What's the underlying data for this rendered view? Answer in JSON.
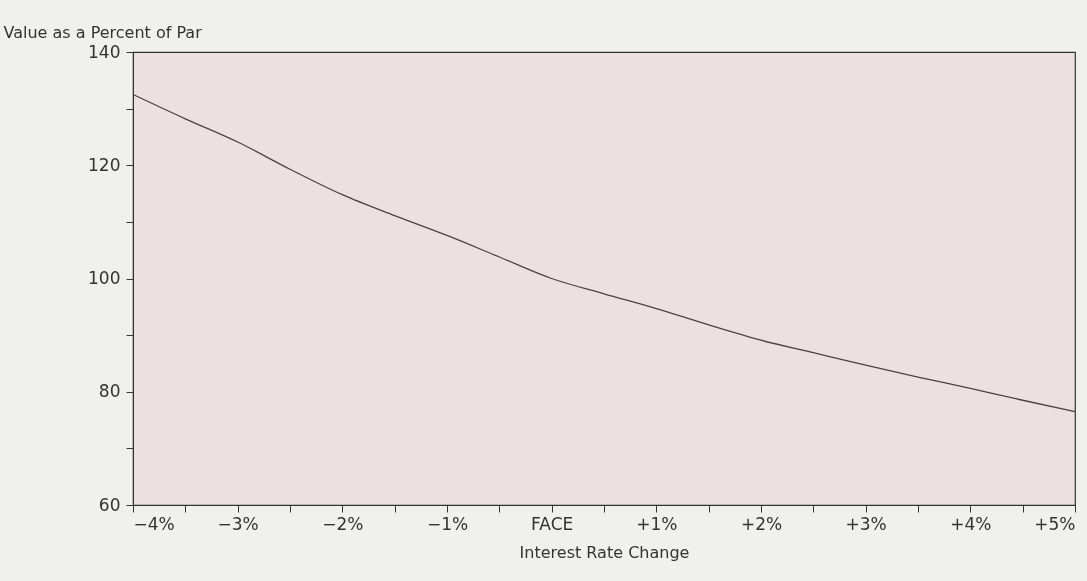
{
  "chart_data": {
    "type": "line",
    "xlabel": "Interest Rate Change",
    "ylabel": "Value as a Percent of Par",
    "x": [
      -4,
      -3.5,
      -3,
      -2.5,
      -2,
      -1.5,
      -1,
      -0.5,
      0,
      0.5,
      1,
      1.5,
      2,
      2.5,
      3,
      3.5,
      4,
      4.5,
      5
    ],
    "series": [
      {
        "color": "#4a4446",
        "values": [
          132.5,
          128.2,
          124.1,
          119.3,
          114.8,
          111.1,
          107.6,
          103.8,
          100,
          97.3,
          94.7,
          91.8,
          89.1,
          86.9,
          84.7,
          82.6,
          80.6,
          78.5,
          76.5
        ]
      }
    ],
    "xlim": [
      -4,
      5
    ],
    "xticks": [
      {
        "value": -4,
        "label": "−4%"
      },
      {
        "value": -3.5,
        "label": null
      },
      {
        "value": -3,
        "label": "−3%"
      },
      {
        "value": -2.5,
        "label": null
      },
      {
        "value": -2,
        "label": "−2%"
      },
      {
        "value": -1.5,
        "label": null
      },
      {
        "value": -1,
        "label": "−1%"
      },
      {
        "value": -0.5,
        "label": null
      },
      {
        "value": 0,
        "label": "FACE"
      },
      {
        "value": 0.5,
        "label": null
      },
      {
        "value": 1,
        "label": "+1%"
      },
      {
        "value": 1.5,
        "label": null
      },
      {
        "value": 2,
        "label": "+2%"
      },
      {
        "value": 2.5,
        "label": null
      },
      {
        "value": 3,
        "label": "+3%"
      },
      {
        "value": 3.5,
        "label": null
      },
      {
        "value": 4,
        "label": "+4%"
      },
      {
        "value": 4.5,
        "label": null
      },
      {
        "value": 5,
        "label": "+5%"
      }
    ],
    "ylim": [
      60,
      140
    ],
    "yticks": [
      60,
      {
        "value": 70,
        "label": null
      },
      80,
      {
        "value": 90,
        "label": null
      },
      100,
      {
        "value": 110,
        "label": null
      },
      120,
      {
        "value": 130,
        "label": null
      },
      140
    ],
    "grid": false,
    "marker": "none",
    "line_style": "solid"
  }
}
